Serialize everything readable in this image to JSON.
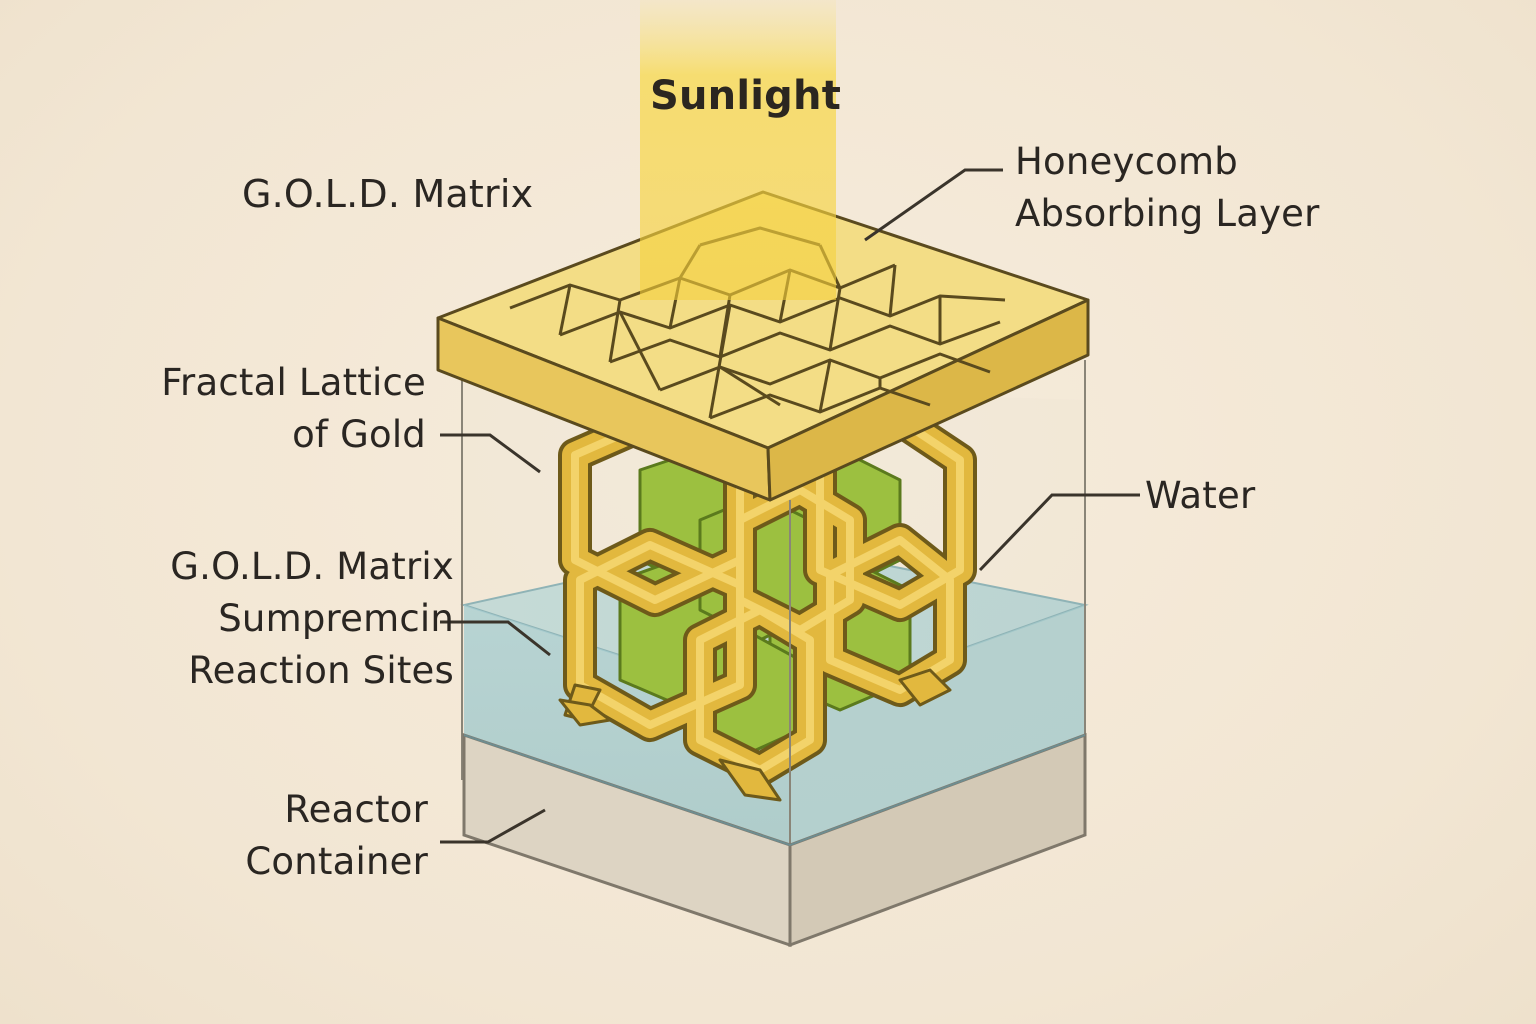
{
  "diagram": {
    "sunlight_label": "Sunlight",
    "matrix_title": "G.O.L.D. Matrix",
    "honeycomb_label": [
      "Honeycomb",
      "Absorbing Layer"
    ],
    "fractal_label": [
      "Fractal Lattice",
      "of Gold"
    ],
    "water_label": "Water",
    "reaction_label": [
      "G.O.L.D. Matrix",
      "Sumpremcin",
      "Reaction Sites"
    ],
    "reactor_label": [
      "Reactor",
      "Container"
    ]
  },
  "colors": {
    "background": "#f3e8d6",
    "gold_plate": "#f2d77a",
    "gold_lattice": "#e0b43a",
    "green_core": "#95b93a",
    "water": "#a9cdd0",
    "container_base": "#dcd3c2",
    "outline": "#3a342b",
    "sunbeam": "#f7d94a"
  }
}
